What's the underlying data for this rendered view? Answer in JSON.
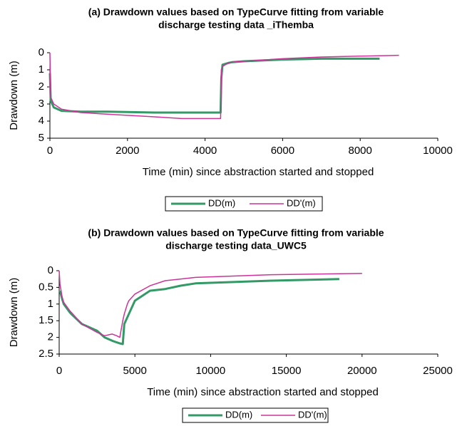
{
  "chart_data": [
    {
      "type": "line",
      "title": [
        "(a) Drawdown values based on TypeCurve fitting from variable",
        "discharge testing data _iThemba"
      ],
      "x_label": "Time (min) since abstraction started and stopped",
      "y_label": "Drawdown (m)",
      "xlim": [
        0,
        10000
      ],
      "xticks": [
        0,
        2000,
        4000,
        6000,
        8000,
        10000
      ],
      "ylim": [
        0,
        5
      ],
      "yticks": [
        0,
        1,
        2,
        3,
        4,
        5
      ],
      "y_reversed": true,
      "grid": false,
      "x": [
        0,
        20,
        100,
        300,
        800,
        1500,
        2700,
        3400,
        4400,
        4420,
        4450,
        4600,
        4700,
        5000,
        6000,
        7000,
        8000,
        8500,
        9000
      ],
      "series": [
        {
          "name": "DD(m)",
          "color": "#339966",
          "width": 3,
          "values": [
            1.2,
            2.8,
            3.2,
            3.4,
            3.45,
            3.45,
            3.5,
            3.5,
            3.5,
            1.5,
            0.7,
            0.6,
            0.55,
            0.5,
            0.4,
            0.35,
            0.35,
            0.35,
            null
          ]
        },
        {
          "name": "DD'(m)",
          "color": "#cc3399",
          "width": 1.5,
          "values": [
            0,
            2.6,
            3.0,
            3.3,
            3.5,
            3.6,
            3.75,
            3.85,
            3.85,
            1.0,
            0.8,
            0.6,
            0.55,
            0.5,
            0.35,
            0.25,
            0.2,
            0.18,
            0.15
          ]
        }
      ]
    },
    {
      "type": "line",
      "title": [
        "(b) Drawdown values based on TypeCurve fitting from variable",
        "discharge testing data_UWC5"
      ],
      "x_label": "Time (min) since abstraction started and stopped",
      "y_label": "Drawdown (m)",
      "xlim": [
        0,
        25000
      ],
      "xticks": [
        0,
        5000,
        10000,
        15000,
        20000,
        25000
      ],
      "ylim": [
        0,
        2.5
      ],
      "yticks": [
        0,
        0.5,
        1,
        1.5,
        2,
        2.5
      ],
      "y_reversed": true,
      "grid": false,
      "x": [
        0,
        50,
        200,
        300,
        700,
        800,
        1500,
        2500,
        3000,
        3500,
        3800,
        4000,
        4200,
        4300,
        4500,
        4600,
        5000,
        6000,
        7000,
        8000,
        9000,
        14000,
        18500,
        20000,
        20300
      ],
      "series": [
        {
          "name": "DD(m)",
          "color": "#339966",
          "width": 3,
          "values": [
            null,
            0.6,
            0.85,
            1.0,
            1.25,
            1.3,
            1.6,
            1.8,
            2.0,
            2.1,
            2.15,
            2.18,
            2.2,
            1.6,
            1.4,
            1.3,
            0.9,
            0.6,
            0.55,
            0.45,
            0.38,
            0.3,
            0.25,
            null,
            0.2
          ]
        },
        {
          "name": "DD'(m)",
          "color": "#cc3399",
          "width": 1.5,
          "values": [
            0,
            0.4,
            0.8,
            0.95,
            1.2,
            1.25,
            1.6,
            1.85,
            1.95,
            1.9,
            1.95,
            2.0,
            1.5,
            1.3,
            1.0,
            0.9,
            0.7,
            0.45,
            0.3,
            0.25,
            0.2,
            0.12,
            0.09,
            0.08,
            null
          ]
        }
      ]
    }
  ]
}
